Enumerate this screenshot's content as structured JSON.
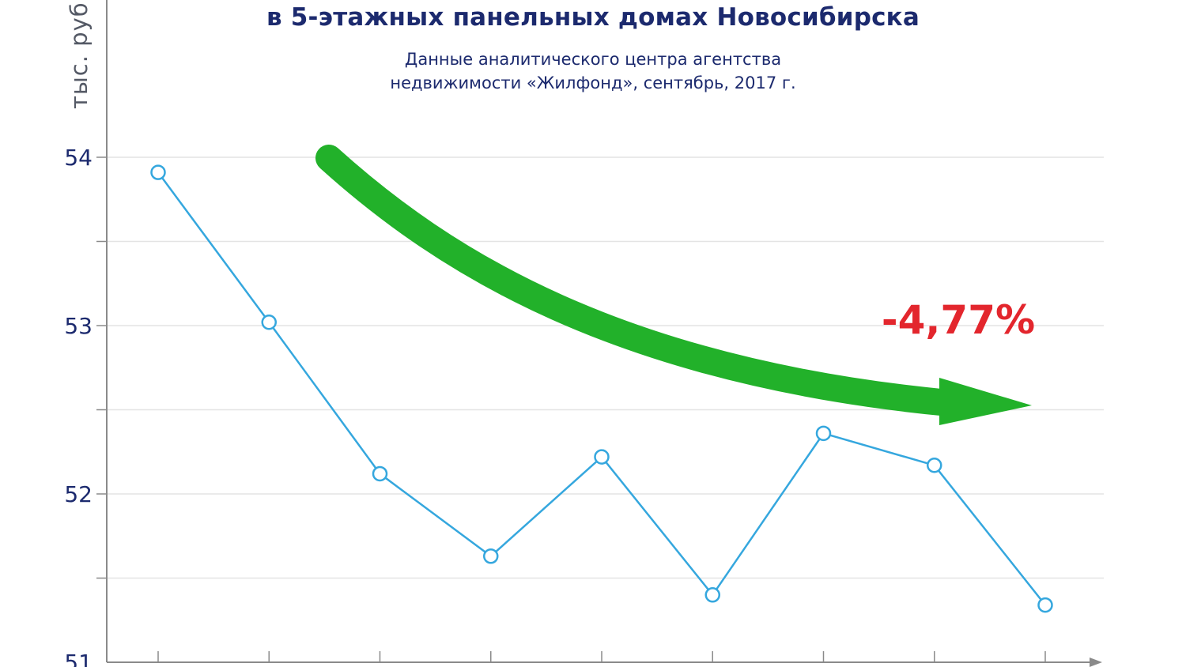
{
  "chart_data": {
    "type": "line",
    "title": "в 5-этажных панельных домах Новосибирска",
    "subtitle_lines": [
      "Данные аналитического центра агентства",
      "недвижимости «Жилфонд», сентябрь, 2017 г."
    ],
    "ylabel": "тыс. руб",
    "ylim": [
      51,
      55
    ],
    "yticks": [
      51,
      52,
      53,
      54
    ],
    "grid": true,
    "series": [
      {
        "values": [
          53.91,
          53.02,
          52.12,
          51.63,
          52.22,
          51.4,
          52.36,
          52.17,
          51.34
        ]
      }
    ],
    "annotation": {
      "text": "-4,77%",
      "arrow": "downward trend arrow"
    },
    "colors": {
      "line": "#35a7de",
      "arrow": "#22b12a",
      "annotation": "#e3262d",
      "text": "#1c2a6e"
    }
  }
}
